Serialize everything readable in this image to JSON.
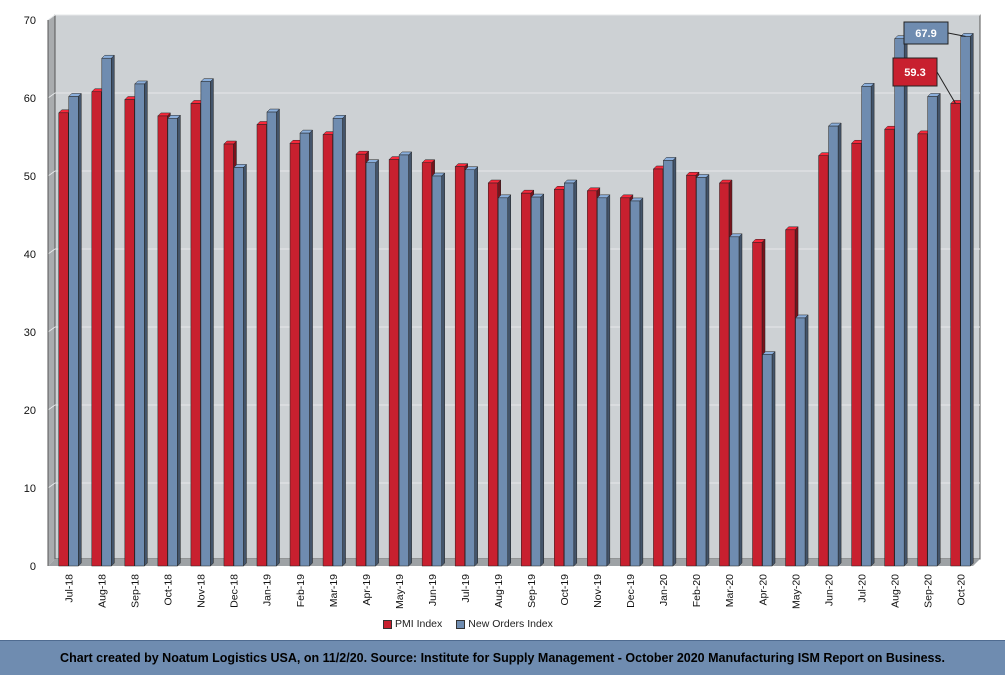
{
  "chart_data": {
    "type": "bar",
    "categories": [
      "Jul-18",
      "Aug-18",
      "Sep-18",
      "Oct-18",
      "Nov-18",
      "Dec-18",
      "Jan-19",
      "Feb-19",
      "Mar-19",
      "Apr-19",
      "May-19",
      "Jun-19",
      "Jul-19",
      "Aug-19",
      "Sep-19",
      "Oct-19",
      "Nov-19",
      "Dec-19",
      "Jan-20",
      "Feb-20",
      "Mar-20",
      "Apr-20",
      "May-20",
      "Jun-20",
      "Jul-20",
      "Aug-20",
      "Sep-20",
      "Oct-20"
    ],
    "series": [
      {
        "name": "PMI Index",
        "color": "#c8202f",
        "values": [
          58.1,
          60.8,
          59.8,
          57.7,
          59.3,
          54.1,
          56.6,
          54.2,
          55.3,
          52.8,
          52.1,
          51.7,
          51.2,
          49.1,
          47.8,
          48.3,
          48.1,
          47.2,
          50.9,
          50.1,
          49.1,
          41.5,
          43.1,
          52.6,
          54.2,
          56.0,
          55.4,
          59.3
        ]
      },
      {
        "name": "New Orders Index",
        "color": "#6f8cb0",
        "values": [
          60.2,
          65.1,
          61.8,
          57.4,
          62.1,
          51.1,
          58.2,
          55.5,
          57.4,
          51.7,
          52.7,
          50.0,
          50.8,
          47.2,
          47.3,
          49.1,
          47.2,
          46.8,
          52.0,
          49.8,
          42.2,
          27.1,
          31.8,
          56.4,
          61.5,
          67.6,
          60.2,
          67.9
        ]
      }
    ],
    "ylim": [
      0,
      70
    ],
    "yticks": [
      0,
      10,
      20,
      30,
      40,
      50,
      60,
      70
    ],
    "grid": true,
    "legend_position": "bottom",
    "annotations": [
      {
        "label": "67.9",
        "series": "New Orders Index",
        "category": "Oct-20"
      },
      {
        "label": "59.3",
        "series": "PMI Index",
        "category": "Oct-20"
      }
    ]
  },
  "legend": {
    "pmi_label": "PMI Index",
    "new_orders_label": "New Orders Index"
  },
  "footer": {
    "text": "Chart created by Noatum Logistics USA, on 11/2/20. Source: Institute for Supply Management - October 2020 Manufacturing ISM Report on Business."
  }
}
